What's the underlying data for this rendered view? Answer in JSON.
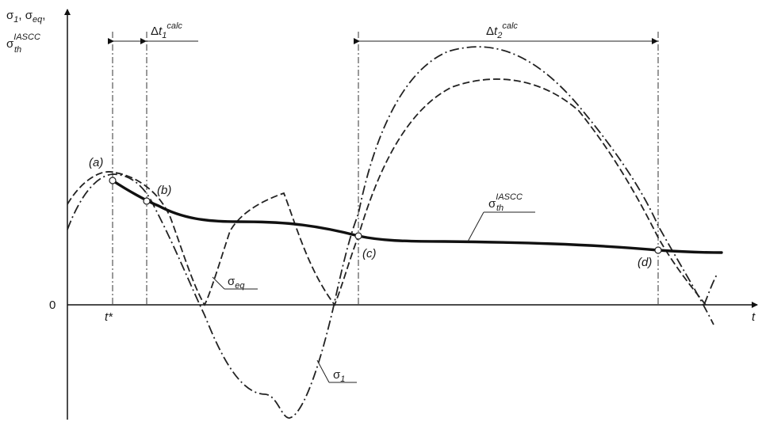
{
  "axes": {
    "y_label_line1_s1": "σ",
    "y_label_line1_s1_sub": "1",
    "y_label_line1_sep": ", σ",
    "y_label_line1_eq_sub": "eq",
    "y_label_line1_end": ",",
    "y_label_line2_sigma": "σ",
    "y_label_line2_sub": "th",
    "y_label_line2_sup": "IASCC",
    "x_label": "t",
    "zero_label": "0",
    "tstar_label": "t*"
  },
  "intervals": {
    "dt1_delta": "Δ",
    "dt1_t": "t",
    "dt1_sub": "1",
    "dt1_sup": "calc",
    "dt2_delta": "Δ",
    "dt2_t": "t",
    "dt2_sub": "2",
    "dt2_sup": "calc"
  },
  "points": {
    "a": "(a)",
    "b": "(b)",
    "c": "(c)",
    "d": "(d)"
  },
  "curves": {
    "seq_sigma": "σ",
    "seq_sub": "eq",
    "s1_sigma": "σ",
    "s1_sub": "1",
    "th_sigma": "σ",
    "th_sub": "th",
    "th_sup": "IASCC"
  }
}
